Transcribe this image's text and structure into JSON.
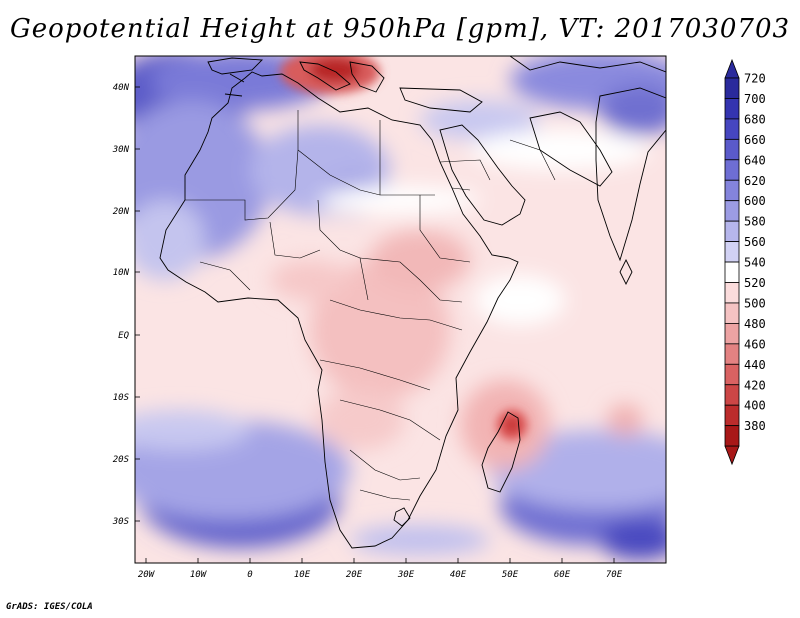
{
  "title": "Geopotential Height at 950hPa [gpm], VT: 2017030703",
  "credit": "GrADS: IGES/COLA",
  "lat_labels": [
    "40N",
    "30N",
    "20N",
    "10N",
    "EQ",
    "10S",
    "20S",
    "30S"
  ],
  "lon_labels": [
    "20W",
    "10W",
    "0",
    "10E",
    "20E",
    "30E",
    "40E",
    "50E",
    "60E",
    "70E"
  ],
  "colorbar": {
    "levels": [
      "720",
      "700",
      "680",
      "660",
      "640",
      "620",
      "600",
      "580",
      "560",
      "540",
      "520",
      "500",
      "480",
      "460",
      "440",
      "420",
      "400",
      "380"
    ],
    "colors": [
      "#2a2a9c",
      "#3434b0",
      "#4646c0",
      "#5a5aca",
      "#6e6ed4",
      "#8484dc",
      "#9c9ce4",
      "#b6b6ec",
      "#d2d2f4",
      "#ffffff",
      "#fbdcdc",
      "#f5c3c3",
      "#eda3a3",
      "#e38282",
      "#d96262",
      "#cc4646",
      "#bc2c2c",
      "#a81818"
    ]
  },
  "colors": {
    "background": "#ffffff",
    "frame": "#000000",
    "land_border": "#000000"
  }
}
